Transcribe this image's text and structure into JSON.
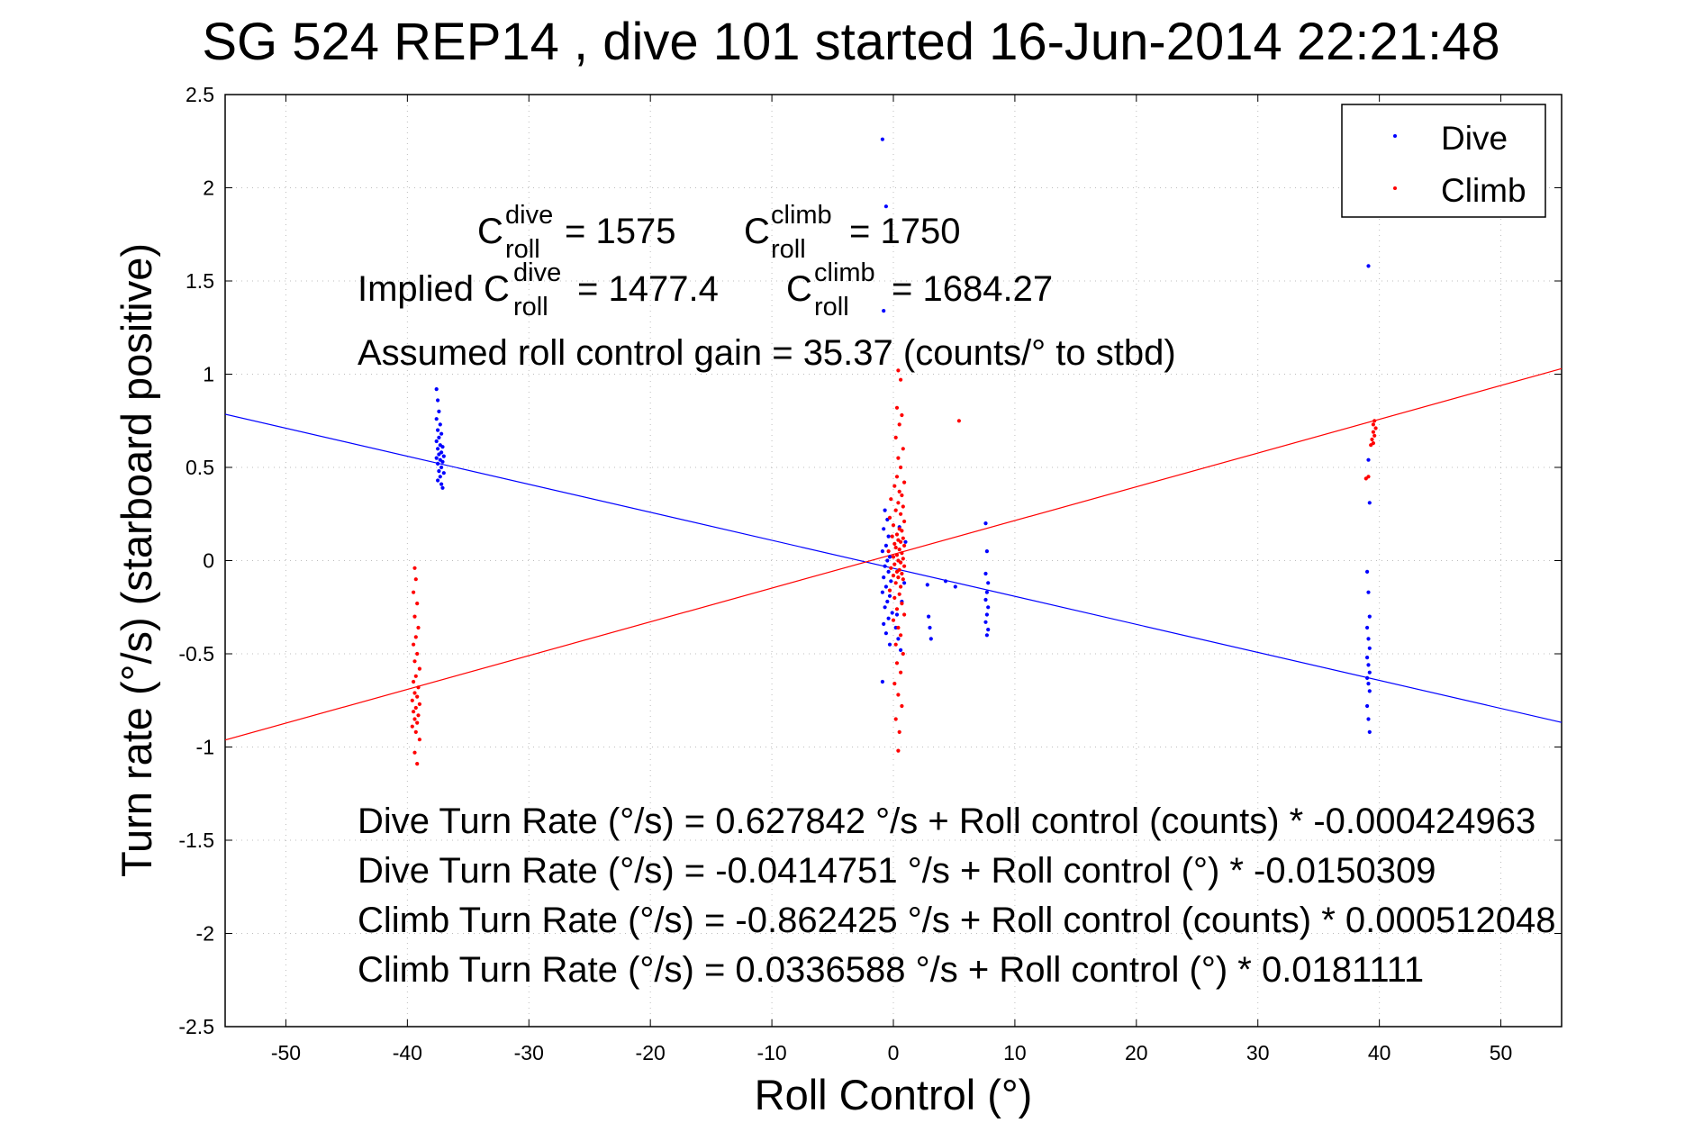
{
  "chart_data": {
    "type": "scatter",
    "title": "SG 524   REP14  , dive 101 started 16-Jun-2014 22:21:48",
    "xlabel": "Roll Control (°)",
    "ylabel": "Turn rate (°/s) (starboard positive)",
    "xlim": [
      -55,
      55
    ],
    "ylim": [
      -2.5,
      2.5
    ],
    "xticks": [
      -50,
      -40,
      -30,
      -20,
      -10,
      0,
      10,
      20,
      30,
      40,
      50
    ],
    "yticks": [
      2.5,
      2,
      1.5,
      1,
      0.5,
      0,
      -0.5,
      -1,
      -1.5,
      -2,
      -2.5
    ],
    "xtick_labels": [
      "-50",
      "-40",
      "-30",
      "-20",
      "-10",
      "0",
      "10",
      "20",
      "30",
      "40",
      "50"
    ],
    "ytick_labels": [
      "2.5",
      "2",
      "1.5",
      "1",
      "0.5",
      "0",
      "-0.5",
      "-1",
      "-1.5",
      "-2",
      "-2.5"
    ],
    "grid": true,
    "legend": {
      "position": "top-right",
      "entries": [
        "Dive",
        "Climb"
      ]
    },
    "colors": {
      "dive": "#0000ff",
      "climb": "#ff0000"
    },
    "series": [
      {
        "name": "Dive",
        "color": "#0000ff",
        "marker": "point",
        "points": [
          [
            -37.6,
            0.92
          ],
          [
            -37.5,
            0.86
          ],
          [
            -37.4,
            0.8
          ],
          [
            -37.6,
            0.76
          ],
          [
            -37.3,
            0.73
          ],
          [
            -37.5,
            0.7
          ],
          [
            -37.2,
            0.68
          ],
          [
            -37.4,
            0.66
          ],
          [
            -37.6,
            0.64
          ],
          [
            -37.3,
            0.62
          ],
          [
            -37.1,
            0.61
          ],
          [
            -37.5,
            0.6
          ],
          [
            -37.2,
            0.58
          ],
          [
            -37.4,
            0.57
          ],
          [
            -37.0,
            0.56
          ],
          [
            -37.6,
            0.55
          ],
          [
            -37.3,
            0.54
          ],
          [
            -37.1,
            0.53
          ],
          [
            -37.5,
            0.52
          ],
          [
            -37.2,
            0.5
          ],
          [
            -37.4,
            0.48
          ],
          [
            -37.0,
            0.47
          ],
          [
            -37.3,
            0.45
          ],
          [
            -37.5,
            0.43
          ],
          [
            -37.2,
            0.41
          ],
          [
            -37.1,
            0.39
          ],
          [
            -0.9,
            2.26
          ],
          [
            -0.6,
            1.9
          ],
          [
            -0.8,
            1.34
          ],
          [
            -0.7,
            0.27
          ],
          [
            -0.5,
            0.22
          ],
          [
            -0.8,
            0.17
          ],
          [
            -0.4,
            0.13
          ],
          [
            -0.6,
            0.08
          ],
          [
            -0.9,
            0.05
          ],
          [
            -0.3,
            0.02
          ],
          [
            -0.5,
            0.0
          ],
          [
            -0.7,
            -0.03
          ],
          [
            -0.4,
            -0.06
          ],
          [
            -0.8,
            -0.09
          ],
          [
            -0.2,
            -0.11
          ],
          [
            -0.6,
            -0.14
          ],
          [
            -0.9,
            -0.17
          ],
          [
            -0.3,
            -0.19
          ],
          [
            -0.5,
            -0.22
          ],
          [
            -0.7,
            -0.25
          ],
          [
            -0.1,
            -0.28
          ],
          [
            -0.4,
            -0.31
          ],
          [
            -0.8,
            -0.34
          ],
          [
            0.2,
            -0.36
          ],
          [
            -0.6,
            -0.39
          ],
          [
            0.4,
            -0.42
          ],
          [
            -0.3,
            -0.45
          ],
          [
            0.6,
            -0.48
          ],
          [
            -0.9,
            -0.65
          ],
          [
            0.3,
            -0.29
          ],
          [
            0.7,
            -0.22
          ],
          [
            0.9,
            -0.12
          ],
          [
            1.0,
            0.1
          ],
          [
            0.5,
            0.18
          ],
          [
            2.8,
            -0.13
          ],
          [
            2.9,
            -0.3
          ],
          [
            3.0,
            -0.36
          ],
          [
            3.1,
            -0.42
          ],
          [
            4.3,
            -0.11
          ],
          [
            5.1,
            -0.14
          ],
          [
            7.6,
            0.2
          ],
          [
            7.7,
            0.05
          ],
          [
            7.6,
            -0.07
          ],
          [
            7.8,
            -0.12
          ],
          [
            7.7,
            -0.17
          ],
          [
            7.6,
            -0.21
          ],
          [
            7.8,
            -0.25
          ],
          [
            7.7,
            -0.29
          ],
          [
            7.6,
            -0.33
          ],
          [
            7.8,
            -0.37
          ],
          [
            7.7,
            -0.4
          ],
          [
            39.1,
            1.58
          ],
          [
            39.1,
            0.54
          ],
          [
            39.2,
            0.31
          ],
          [
            39.0,
            -0.06
          ],
          [
            39.1,
            -0.17
          ],
          [
            39.2,
            -0.3
          ],
          [
            39.0,
            -0.36
          ],
          [
            39.1,
            -0.42
          ],
          [
            39.2,
            -0.47
          ],
          [
            39.0,
            -0.52
          ],
          [
            39.1,
            -0.56
          ],
          [
            39.2,
            -0.6
          ],
          [
            39.0,
            -0.63
          ],
          [
            39.1,
            -0.66
          ],
          [
            39.2,
            -0.7
          ],
          [
            39.0,
            -0.78
          ],
          [
            39.1,
            -0.85
          ],
          [
            39.2,
            -0.92
          ]
        ]
      },
      {
        "name": "Climb",
        "color": "#ff0000",
        "marker": "point",
        "points": [
          [
            -39.4,
            -0.04
          ],
          [
            -39.3,
            -0.1
          ],
          [
            -39.5,
            -0.17
          ],
          [
            -39.2,
            -0.23
          ],
          [
            -39.4,
            -0.3
          ],
          [
            -39.1,
            -0.36
          ],
          [
            -39.3,
            -0.41
          ],
          [
            -39.5,
            -0.45
          ],
          [
            -39.2,
            -0.5
          ],
          [
            -39.4,
            -0.54
          ],
          [
            -39.0,
            -0.58
          ],
          [
            -39.3,
            -0.62
          ],
          [
            -39.5,
            -0.65
          ],
          [
            -39.1,
            -0.68
          ],
          [
            -39.4,
            -0.71
          ],
          [
            -39.2,
            -0.73
          ],
          [
            -39.6,
            -0.75
          ],
          [
            -39.0,
            -0.77
          ],
          [
            -39.3,
            -0.79
          ],
          [
            -39.5,
            -0.81
          ],
          [
            -39.1,
            -0.83
          ],
          [
            -39.4,
            -0.85
          ],
          [
            -39.2,
            -0.87
          ],
          [
            -39.6,
            -0.89
          ],
          [
            -39.3,
            -0.92
          ],
          [
            -39.0,
            -0.96
          ],
          [
            -39.4,
            -1.03
          ],
          [
            -39.2,
            -1.09
          ],
          [
            0.4,
            1.02
          ],
          [
            0.6,
            0.97
          ],
          [
            0.3,
            0.82
          ],
          [
            0.7,
            0.78
          ],
          [
            0.5,
            0.73
          ],
          [
            0.2,
            0.66
          ],
          [
            0.8,
            0.6
          ],
          [
            0.4,
            0.55
          ],
          [
            0.6,
            0.5
          ],
          [
            0.3,
            0.45
          ],
          [
            0.9,
            0.42
          ],
          [
            0.1,
            0.4
          ],
          [
            0.5,
            0.37
          ],
          [
            0.7,
            0.35
          ],
          [
            -0.2,
            0.33
          ],
          [
            0.4,
            0.31
          ],
          [
            0.8,
            0.29
          ],
          [
            0.2,
            0.27
          ],
          [
            0.6,
            0.25
          ],
          [
            -0.3,
            0.23
          ],
          [
            0.9,
            0.21
          ],
          [
            0.0,
            0.19
          ],
          [
            0.5,
            0.17
          ],
          [
            0.7,
            0.16
          ],
          [
            0.3,
            0.14
          ],
          [
            -0.1,
            0.13
          ],
          [
            0.8,
            0.12
          ],
          [
            0.4,
            0.11
          ],
          [
            0.6,
            0.1
          ],
          [
            0.1,
            0.09
          ],
          [
            0.9,
            0.08
          ],
          [
            0.2,
            0.07
          ],
          [
            0.5,
            0.06
          ],
          [
            -0.4,
            0.05
          ],
          [
            0.7,
            0.04
          ],
          [
            0.3,
            0.03
          ],
          [
            0.0,
            0.02
          ],
          [
            0.8,
            0.01
          ],
          [
            0.4,
            0.0
          ],
          [
            0.6,
            -0.01
          ],
          [
            0.1,
            -0.02
          ],
          [
            0.9,
            -0.03
          ],
          [
            -0.2,
            -0.04
          ],
          [
            0.5,
            -0.05
          ],
          [
            0.3,
            -0.06
          ],
          [
            0.7,
            -0.07
          ],
          [
            0.0,
            -0.08
          ],
          [
            0.4,
            -0.09
          ],
          [
            0.8,
            -0.1
          ],
          [
            0.2,
            -0.12
          ],
          [
            0.6,
            -0.14
          ],
          [
            -0.3,
            -0.16
          ],
          [
            0.5,
            -0.18
          ],
          [
            0.1,
            -0.2
          ],
          [
            0.7,
            -0.23
          ],
          [
            0.3,
            -0.26
          ],
          [
            0.9,
            -0.29
          ],
          [
            0.0,
            -0.32
          ],
          [
            0.4,
            -0.36
          ],
          [
            0.6,
            -0.4
          ],
          [
            0.2,
            -0.45
          ],
          [
            0.8,
            -0.5
          ],
          [
            0.3,
            -0.55
          ],
          [
            0.6,
            -0.6
          ],
          [
            0.1,
            -0.66
          ],
          [
            0.4,
            -0.72
          ],
          [
            0.7,
            -0.78
          ],
          [
            0.2,
            -0.85
          ],
          [
            0.5,
            -0.92
          ],
          [
            0.4,
            -1.02
          ],
          [
            5.4,
            0.75
          ],
          [
            38.9,
            0.44
          ],
          [
            39.1,
            0.45
          ],
          [
            39.3,
            0.62
          ],
          [
            39.5,
            0.63
          ],
          [
            39.4,
            0.65
          ],
          [
            39.6,
            0.67
          ],
          [
            39.5,
            0.69
          ],
          [
            39.7,
            0.71
          ],
          [
            39.5,
            0.73
          ],
          [
            39.6,
            0.75
          ]
        ]
      }
    ],
    "fit_lines": [
      {
        "series": "Dive",
        "color": "#0000ff",
        "intercept": -0.0414751,
        "slope": -0.0150309
      },
      {
        "series": "Climb",
        "color": "#ff0000",
        "intercept": 0.0336588,
        "slope": 0.0181111
      }
    ],
    "annotations": {
      "c_roll": {
        "dive_symbol": "C",
        "dive_sup": "dive",
        "dive_sub": "roll",
        "dive_value": "= 1575",
        "climb_symbol": "C",
        "climb_sup": "climb",
        "climb_sub": "roll",
        "climb_value": "= 1750"
      },
      "implied": {
        "prefix": "Implied C",
        "dive_sup": "dive",
        "dive_sub": "roll",
        "dive_value": "= 1477.4",
        "climb_symbol": "C",
        "climb_sup": "climb",
        "climb_sub": "roll",
        "climb_value": "= 1684.27"
      },
      "gain": "Assumed roll control gain = 35.37 (counts/° to stbd)",
      "equations": [
        "Dive Turn Rate (°/s) = 0.627842 °/s + Roll control (counts) * -0.000424963",
        "Dive Turn Rate (°/s) = -0.0414751 °/s + Roll control (°) * -0.0150309",
        "Climb Turn Rate (°/s) = -0.862425 °/s + Roll control (counts) * 0.000512048",
        "Climb Turn Rate (°/s) = 0.0336588 °/s + Roll control (°) * 0.0181111"
      ]
    }
  }
}
